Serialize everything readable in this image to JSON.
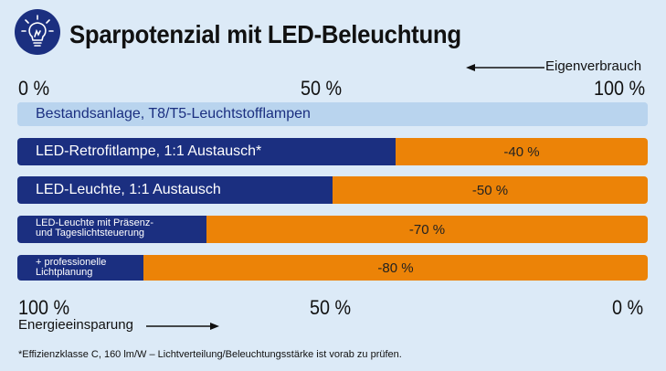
{
  "title": "Sparpotenzial mit LED-Beleuchtung",
  "icon": "lightbulb-icon",
  "colors": {
    "led": "#1b2f80",
    "savings": "#ec8307",
    "reference": "#b9d4ee",
    "background": "#dceaf7"
  },
  "top_axis": {
    "caption": "Eigenverbrauch",
    "ticks": [
      "0 %",
      "50 %",
      "100 %"
    ]
  },
  "bottom_axis": {
    "caption": "Energieeinsparung",
    "ticks": [
      "100 %",
      "50 %",
      "0 %"
    ]
  },
  "footnote": "*Effizienzklasse C, 160 lm/W – Lichtverteilung/Beleuchtungsstärke ist vorab zu prüfen.",
  "chart_data": {
    "type": "bar",
    "orientation": "horizontal",
    "stacked": true,
    "xlim": [
      0,
      100
    ],
    "categories": [
      "Bestandsanlage, T8/T5-Leuchtstofflampen",
      "LED-Retrofitlampe, 1:1 Austausch*",
      "LED-Leuchte, 1:1 Austausch",
      "LED-Leuchte mit Präsenz- und Tageslichtsteuerung",
      "+ professionelle Lichtplanung"
    ],
    "series": [
      {
        "values": [
          100,
          60,
          50,
          30,
          20
        ]
      },
      {
        "values": [
          0,
          40,
          50,
          70,
          80
        ]
      }
    ],
    "savings_labels": [
      "",
      "-40 %",
      "-50 %",
      "-70 %",
      "-80 %"
    ],
    "bar_label_lines": [
      [
        "Bestandsanlage, T8/T5-Leuchtstofflampen"
      ],
      [
        "LED-Retrofitlampe, 1:1 Austausch*"
      ],
      [
        "LED-Leuchte, 1:1 Austausch"
      ],
      [
        "LED-Leuchte mit Präsenz-",
        "und Tageslichtsteuerung"
      ],
      [
        "+ professionelle",
        "Lichtplanung"
      ]
    ]
  }
}
